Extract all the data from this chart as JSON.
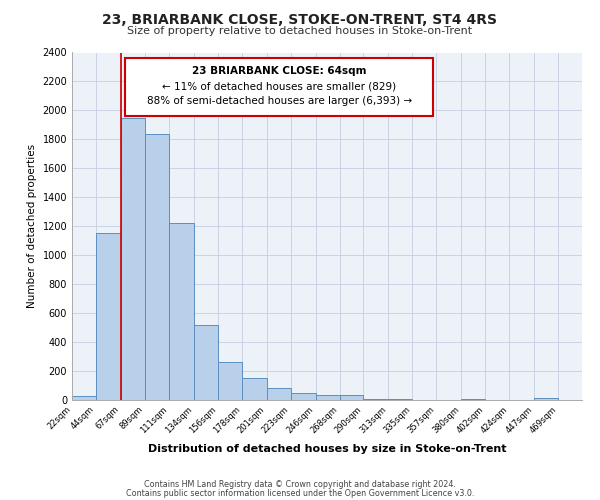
{
  "title": "23, BRIARBANK CLOSE, STOKE-ON-TRENT, ST4 4RS",
  "subtitle": "Size of property relative to detached houses in Stoke-on-Trent",
  "xlabel": "Distribution of detached houses by size in Stoke-on-Trent",
  "ylabel": "Number of detached properties",
  "bin_labels": [
    "22sqm",
    "44sqm",
    "67sqm",
    "89sqm",
    "111sqm",
    "134sqm",
    "156sqm",
    "178sqm",
    "201sqm",
    "223sqm",
    "246sqm",
    "268sqm",
    "290sqm",
    "313sqm",
    "335sqm",
    "357sqm",
    "380sqm",
    "402sqm",
    "424sqm",
    "447sqm",
    "469sqm"
  ],
  "bin_edges": [
    22,
    44,
    67,
    89,
    111,
    134,
    156,
    178,
    201,
    223,
    246,
    268,
    290,
    313,
    335,
    357,
    380,
    402,
    424,
    447,
    469
  ],
  "bar_values": [
    25,
    1150,
    1950,
    1840,
    1220,
    520,
    265,
    150,
    80,
    50,
    35,
    35,
    10,
    5,
    3,
    3,
    10,
    2,
    2,
    15
  ],
  "bar_color": "#b8d0ea",
  "bar_edge_color": "#5a8fc0",
  "property_line_x": 67,
  "annotation_text_line1": "23 BRIARBANK CLOSE: 64sqm",
  "annotation_text_line2": "← 11% of detached houses are smaller (829)",
  "annotation_text_line3": "88% of semi-detached houses are larger (6,393) →",
  "annotation_box_color": "#ffffff",
  "annotation_box_edge": "#cc0000",
  "vline_color": "#cc0000",
  "ylim": [
    0,
    2400
  ],
  "yticks": [
    0,
    200,
    400,
    600,
    800,
    1000,
    1200,
    1400,
    1600,
    1800,
    2000,
    2200,
    2400
  ],
  "footer_line1": "Contains HM Land Registry data © Crown copyright and database right 2024.",
  "footer_line2": "Contains public sector information licensed under the Open Government Licence v3.0.",
  "bg_color": "#edf2f9",
  "grid_color": "#c5cfe0"
}
